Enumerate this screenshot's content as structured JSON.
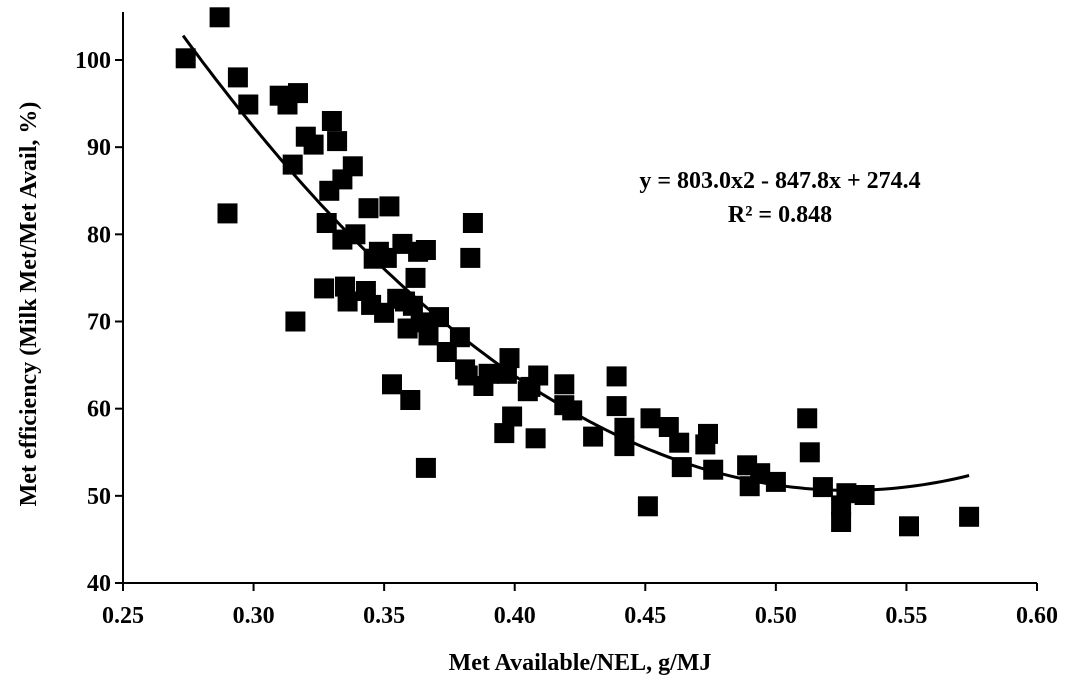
{
  "chart_data": {
    "type": "scatter",
    "title": "",
    "xlabel": "Met Available/NEL, g/MJ",
    "ylabel": "Met efficiency (Milk Met/Met Avail, %)",
    "xlim": [
      0.25,
      0.6
    ],
    "ylim": [
      40,
      105
    ],
    "x_ticks": [
      0.25,
      0.3,
      0.35,
      0.4,
      0.45,
      0.5,
      0.55,
      0.6
    ],
    "x_tick_labels": [
      "0.25",
      "0.30",
      "0.35",
      "0.40",
      "0.45",
      "0.50",
      "0.55",
      "0.60"
    ],
    "y_ticks": [
      40,
      50,
      60,
      70,
      80,
      90,
      100
    ],
    "y_tick_labels": [
      "40",
      "50",
      "60",
      "70",
      "80",
      "90",
      "100"
    ],
    "grid": false,
    "legend": "none",
    "marker_color": "#000000",
    "points": [
      [
        0.274,
        100.2
      ],
      [
        0.287,
        104.9
      ],
      [
        0.29,
        82.4
      ],
      [
        0.294,
        98.0
      ],
      [
        0.298,
        94.9
      ],
      [
        0.31,
        95.9
      ],
      [
        0.313,
        94.9
      ],
      [
        0.315,
        88.0
      ],
      [
        0.316,
        70.0
      ],
      [
        0.317,
        96.2
      ],
      [
        0.32,
        91.2
      ],
      [
        0.323,
        90.3
      ],
      [
        0.327,
        73.8
      ],
      [
        0.328,
        81.3
      ],
      [
        0.329,
        85.0
      ],
      [
        0.33,
        93.0
      ],
      [
        0.332,
        90.7
      ],
      [
        0.334,
        86.3
      ],
      [
        0.334,
        79.4
      ],
      [
        0.335,
        74.0
      ],
      [
        0.336,
        72.3
      ],
      [
        0.338,
        87.8
      ],
      [
        0.339,
        80.0
      ],
      [
        0.343,
        73.5
      ],
      [
        0.344,
        83.0
      ],
      [
        0.345,
        71.9
      ],
      [
        0.346,
        77.2
      ],
      [
        0.348,
        78.0
      ],
      [
        0.35,
        71.0
      ],
      [
        0.351,
        77.3
      ],
      [
        0.352,
        83.2
      ],
      [
        0.353,
        62.8
      ],
      [
        0.355,
        72.6
      ],
      [
        0.357,
        78.9
      ],
      [
        0.358,
        72.3
      ],
      [
        0.359,
        69.2
      ],
      [
        0.36,
        61.0
      ],
      [
        0.361,
        71.8
      ],
      [
        0.362,
        75.0
      ],
      [
        0.363,
        78.0
      ],
      [
        0.364,
        69.9
      ],
      [
        0.366,
        78.2
      ],
      [
        0.367,
        68.4
      ],
      [
        0.366,
        53.2
      ],
      [
        0.371,
        70.5
      ],
      [
        0.374,
        66.5
      ],
      [
        0.379,
        68.2
      ],
      [
        0.381,
        64.5
      ],
      [
        0.382,
        63.8
      ],
      [
        0.383,
        77.3
      ],
      [
        0.384,
        81.3
      ],
      [
        0.388,
        62.6
      ],
      [
        0.39,
        64.0
      ],
      [
        0.396,
        57.2
      ],
      [
        0.397,
        64.0
      ],
      [
        0.398,
        65.8
      ],
      [
        0.399,
        59.1
      ],
      [
        0.405,
        62.0
      ],
      [
        0.406,
        62.5
      ],
      [
        0.408,
        56.6
      ],
      [
        0.409,
        63.8
      ],
      [
        0.419,
        62.8
      ],
      [
        0.419,
        60.4
      ],
      [
        0.422,
        59.8
      ],
      [
        0.43,
        56.8
      ],
      [
        0.439,
        63.7
      ],
      [
        0.439,
        60.3
      ],
      [
        0.442,
        57.8
      ],
      [
        0.442,
        55.7
      ],
      [
        0.451,
        48.8
      ],
      [
        0.452,
        58.9
      ],
      [
        0.459,
        57.9
      ],
      [
        0.463,
        56.1
      ],
      [
        0.464,
        53.3
      ],
      [
        0.473,
        55.9
      ],
      [
        0.474,
        57.1
      ],
      [
        0.476,
        53.0
      ],
      [
        0.489,
        53.5
      ],
      [
        0.49,
        51.1
      ],
      [
        0.494,
        52.6
      ],
      [
        0.5,
        51.6
      ],
      [
        0.512,
        58.9
      ],
      [
        0.513,
        55.0
      ],
      [
        0.518,
        51.0
      ],
      [
        0.525,
        48.9
      ],
      [
        0.525,
        47.0
      ],
      [
        0.527,
        50.3
      ],
      [
        0.534,
        50.1
      ],
      [
        0.551,
        46.5
      ],
      [
        0.574,
        47.6
      ]
    ],
    "trendline": {
      "type": "polynomial",
      "coefficients": {
        "a": 803.0,
        "b": -847.8,
        "c": 274.4
      },
      "x_range": [
        0.273,
        0.574
      ]
    },
    "annotations": [
      "y = 803.0x2 - 847.8x + 274.4",
      "R² = 0.848"
    ]
  }
}
